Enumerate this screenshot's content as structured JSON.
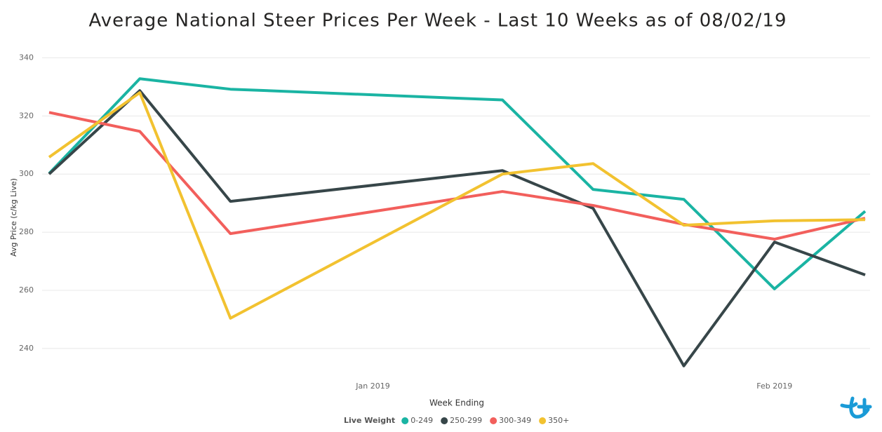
{
  "chart_data": {
    "type": "line",
    "title": "Average National Steer Prices Per Week - Last 10 Weeks as of 08/02/19",
    "x_label": "Week Ending",
    "y_label": "Avg Price (c/kg Live)",
    "legend_title": "Live Weight",
    "x": [
      "2018-12-07",
      "2018-12-14",
      "2018-12-21",
      "2019-01-11",
      "2019-01-18",
      "2019-01-25",
      "2019-02-01",
      "2019-02-08"
    ],
    "xlim": [
      "2018-12-07",
      "2019-02-08"
    ],
    "xticks": [
      {
        "value": "2019-01-01",
        "label": "Jan 2019"
      },
      {
        "value": "2019-02-01",
        "label": "Feb 2019"
      }
    ],
    "ylim": [
      232,
      343
    ],
    "yticks": [
      240,
      260,
      280,
      300,
      320,
      340
    ],
    "grid": true,
    "legend": "bottom",
    "series": [
      {
        "name": "0-249",
        "color": "#1ab4a3",
        "values": [
          300.2,
          332.8,
          329.2,
          325.5,
          294.7,
          291.3,
          260.5,
          287.2
        ]
      },
      {
        "name": "250-299",
        "color": "#374649",
        "values": [
          300.0,
          328.7,
          290.6,
          301.2,
          288.2,
          234.0,
          276.6,
          265.3
        ]
      },
      {
        "name": "300-349",
        "color": "#f25f5c",
        "values": [
          321.2,
          314.7,
          279.5,
          294.0,
          289.2,
          282.7,
          277.6,
          284.8
        ]
      },
      {
        "name": "350+",
        "color": "#f2c230",
        "values": [
          305.8,
          328.0,
          250.4,
          300.0,
          303.6,
          282.4,
          283.9,
          284.3
        ]
      }
    ]
  }
}
